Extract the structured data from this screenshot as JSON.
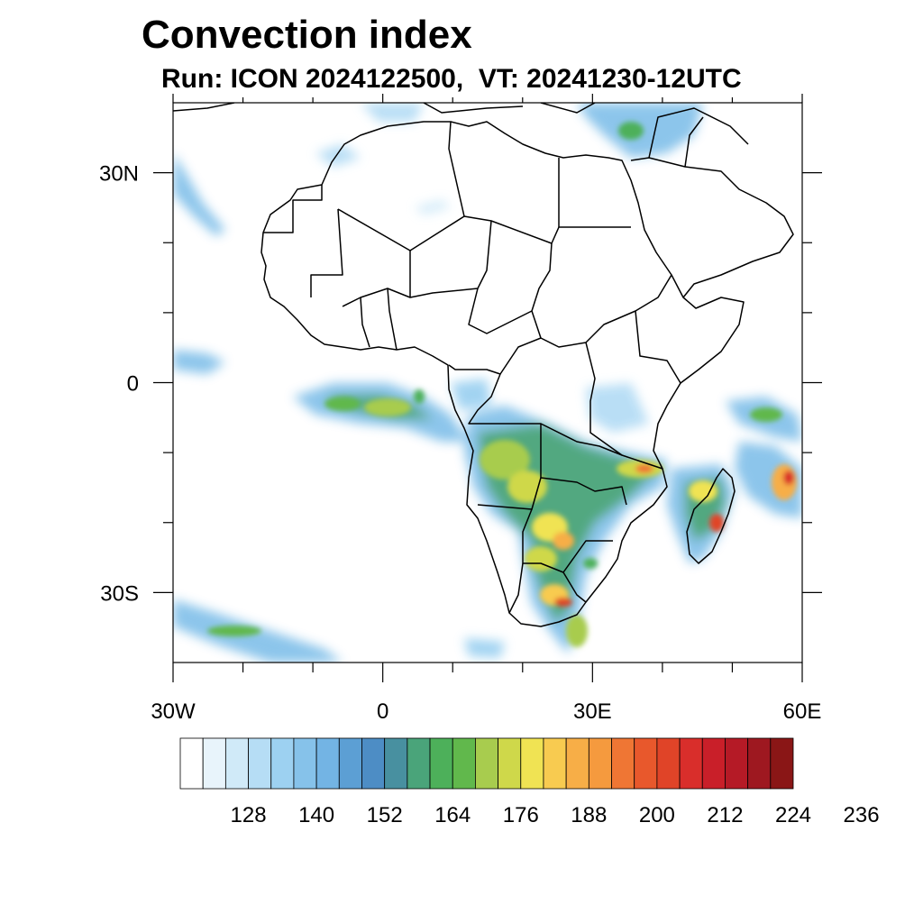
{
  "title": "Convection index",
  "subtitle": "Run: ICON 2024122500,  VT: 20241230-12UTC",
  "map": {
    "lon_range": [
      -30,
      60
    ],
    "lat_range": [
      -40,
      40
    ],
    "x_ticks": [
      {
        "value": -30,
        "label": "30W"
      },
      {
        "value": 0,
        "label": "0"
      },
      {
        "value": 30,
        "label": "30E"
      },
      {
        "value": 60,
        "label": "60E"
      }
    ],
    "y_ticks": [
      {
        "value": 30,
        "label": "30N"
      },
      {
        "value": 0,
        "label": "0"
      },
      {
        "value": -30,
        "label": "30S"
      }
    ],
    "minor_x_ticks": [
      -20,
      -10,
      10,
      20,
      40,
      50
    ],
    "minor_y_ticks": [
      20,
      10,
      -10,
      -20
    ],
    "land_outline_color": "#000000",
    "ocean_color": "#ffffff"
  },
  "colorbar": {
    "colors": [
      "#ffffff",
      "#e8f4fb",
      "#d0eaf8",
      "#b6ddf5",
      "#9dd1f1",
      "#86c2ea",
      "#73b4e4",
      "#5c9fd4",
      "#4d8dc5",
      "#4890a0",
      "#4aa47a",
      "#4db05a",
      "#61b84c",
      "#a8cc4e",
      "#cfd84a",
      "#f0e353",
      "#f8cb50",
      "#f7ae47",
      "#f59a3e",
      "#ef7634",
      "#e8582c",
      "#e04428",
      "#d92e2b",
      "#c91f29",
      "#b51a26",
      "#9e1820",
      "#8a1616"
    ],
    "label_values": [
      128,
      140,
      152,
      164,
      176,
      188,
      200,
      212,
      224,
      236
    ]
  },
  "convection_areas": [
    {
      "lon": 10.0,
      "lat": -10,
      "intensity": 0.55,
      "note": ""
    },
    {
      "lon": 18,
      "lat": -12,
      "intensity": 0.7
    },
    {
      "lon": 24,
      "lat": -15,
      "intensity": 0.85
    },
    {
      "lon": 26,
      "lat": -22,
      "intensity": 0.8
    },
    {
      "lon": 27,
      "lat": -30,
      "intensity": 0.95
    },
    {
      "lon": 36,
      "lat": -12,
      "intensity": 0.75
    },
    {
      "lon": 47,
      "lat": -18,
      "intensity": 0.85
    },
    {
      "lon": 57,
      "lat": -14,
      "intensity": 1.0
    },
    {
      "lon": 55,
      "lat": -5,
      "intensity": 0.7
    },
    {
      "lon": -2,
      "lat": -3,
      "intensity": 0.6
    },
    {
      "lon": 5,
      "lat": -4,
      "intensity": 0.7
    },
    {
      "lon": -20,
      "lat": -34,
      "intensity": 0.5
    },
    {
      "lon": 35,
      "lat": 37,
      "intensity": 0.55
    }
  ]
}
